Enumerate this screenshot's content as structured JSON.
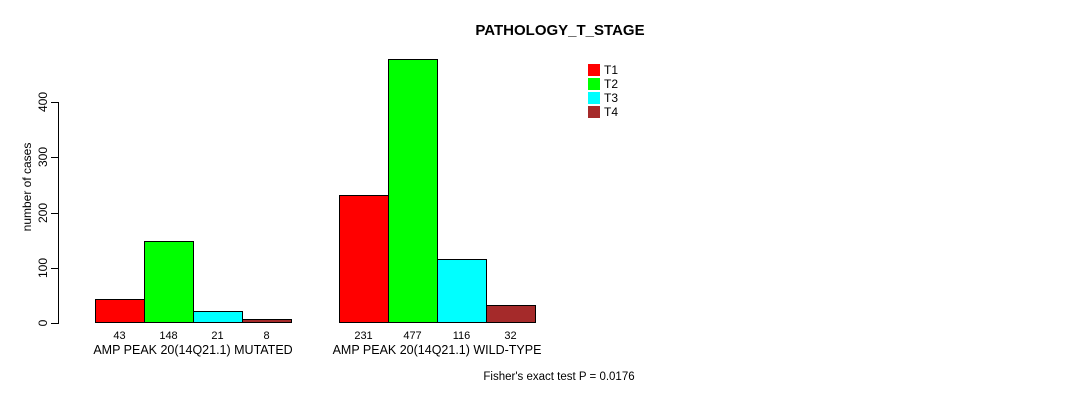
{
  "title": "PATHOLOGY_T_STAGE",
  "annotation": "Fisher's exact test P = 0.0176",
  "chart_data": {
    "type": "bar",
    "title": "PATHOLOGY_T_STAGE",
    "xlabel": "",
    "ylabel": "number of cases",
    "ylim": [
      0,
      400
    ],
    "yticks": [
      0,
      100,
      200,
      300,
      400
    ],
    "grid": false,
    "legend_position": "top-right",
    "value_labels_shown": true,
    "categories": [
      "AMP PEAK 20(14Q21.1) MUTATED",
      "AMP PEAK 20(14Q21.1) WILD-TYPE"
    ],
    "series": [
      {
        "name": "T1",
        "color": "#FF0000",
        "values": [
          43,
          231
        ]
      },
      {
        "name": "T2",
        "color": "#00FF00",
        "values": [
          148,
          477
        ]
      },
      {
        "name": "T3",
        "color": "#00FFFF",
        "values": [
          21,
          116
        ]
      },
      {
        "name": "T4",
        "color": "#A52A2A",
        "values": [
          8,
          32
        ]
      }
    ],
    "annotation": "Fisher's exact test P = 0.0176"
  }
}
